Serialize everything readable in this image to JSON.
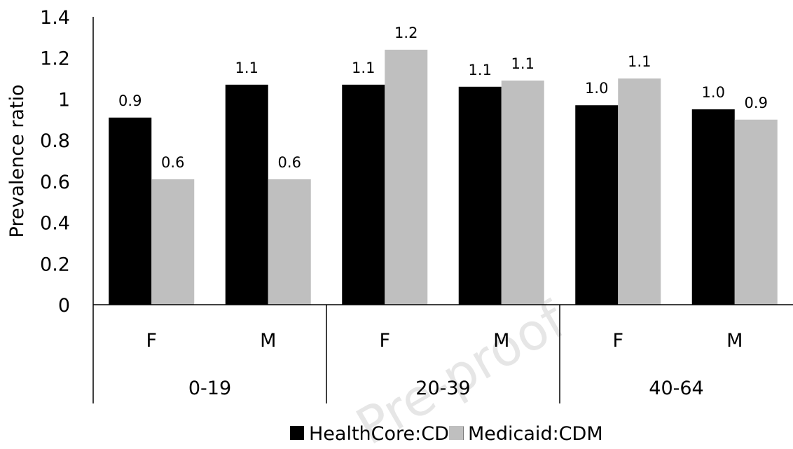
{
  "chart_data": {
    "type": "bar",
    "title": "",
    "xlabel": "",
    "ylabel": "Prevalence ratio",
    "ylim": [
      0,
      1.4
    ],
    "yticks": [
      "0",
      "0.2",
      "0.4",
      "0.6",
      "0.8",
      "1",
      "1.2",
      "1.4"
    ],
    "grid": false,
    "groups": [
      "0-19",
      "20-39",
      "40-64"
    ],
    "subcategories": [
      "F",
      "M"
    ],
    "categories": [
      "0-19 F",
      "0-19 M",
      "20-39 F",
      "20-39 M",
      "40-64 F",
      "40-64 M"
    ],
    "series": [
      {
        "name": "HealthCore:CDM",
        "color": "#000000",
        "values": [
          0.91,
          1.07,
          1.07,
          1.06,
          0.97,
          0.95
        ],
        "labels": [
          "0.9",
          "1.1",
          "1.1",
          "1.1",
          "1.0",
          "1.0"
        ]
      },
      {
        "name": "Medicaid:CDM",
        "color": "#bfbfbf",
        "values": [
          0.61,
          0.61,
          1.24,
          1.09,
          1.1,
          0.9
        ],
        "labels": [
          "0.6",
          "0.6",
          "1.2",
          "1.1",
          "1.1",
          "0.9"
        ]
      }
    ],
    "legend_position": "bottom"
  },
  "watermark": "Pre-proof"
}
